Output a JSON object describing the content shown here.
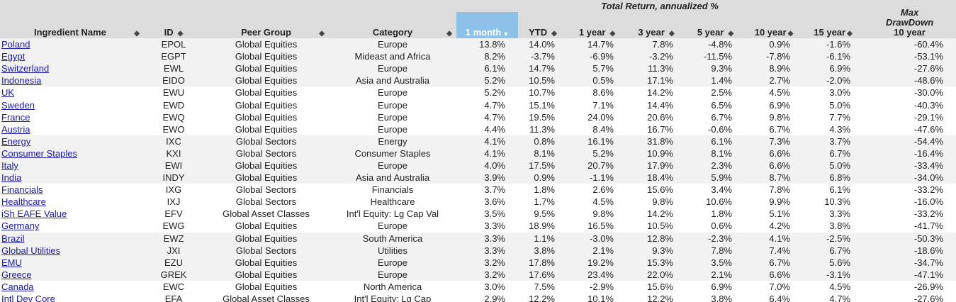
{
  "header": {
    "group_label": "Total Return, annualized %",
    "maxdd_line1": "Max",
    "maxdd_line2": "DrawDown",
    "maxdd_line3": "10 year",
    "columns": [
      {
        "label": "Ingredient Name",
        "sort": "both"
      },
      {
        "label": "ID",
        "sort": "both"
      },
      {
        "label": "Peer Group",
        "sort": "both"
      },
      {
        "label": "Category",
        "sort": "both"
      },
      {
        "label": "1 month",
        "sort": "desc",
        "active": true
      },
      {
        "label": "YTD",
        "sort": "both"
      },
      {
        "label": "1 year",
        "sort": "both"
      },
      {
        "label": "3 year",
        "sort": "both"
      },
      {
        "label": "5 year",
        "sort": "both"
      },
      {
        "label": "10 year",
        "sort": "both"
      },
      {
        "label": "15 year",
        "sort": "both"
      }
    ]
  },
  "rows": [
    {
      "name": "Poland",
      "id": "EPOL",
      "peer": "Global Equities",
      "category": "Europe",
      "m1": "13.8%",
      "ytd": "14.0%",
      "y1": "14.7%",
      "y3": "7.8%",
      "y5": "-4.8%",
      "y10": "0.9%",
      "y15": "-1.6%",
      "mdd": "-60.4%"
    },
    {
      "name": "Egypt",
      "id": "EGPT",
      "peer": "Global Equities",
      "category": "Mideast and Africa",
      "m1": "8.2%",
      "ytd": "-3.7%",
      "y1": "-6.9%",
      "y3": "-3.2%",
      "y5": "-11.5%",
      "y10": "-7.8%",
      "y15": "-6.1%",
      "mdd": "-53.1%"
    },
    {
      "name": "Switzerland",
      "id": "EWL",
      "peer": "Global Equities",
      "category": "Europe",
      "m1": "6.1%",
      "ytd": "14.7%",
      "y1": "5.7%",
      "y3": "11.3%",
      "y5": "9.3%",
      "y10": "8.9%",
      "y15": "6.9%",
      "mdd": "-27.6%"
    },
    {
      "name": "Indonesia",
      "id": "EIDO",
      "peer": "Global Equities",
      "category": "Asia and Australia",
      "m1": "5.2%",
      "ytd": "10.5%",
      "y1": "0.5%",
      "y3": "17.1%",
      "y5": "1.4%",
      "y10": "2.7%",
      "y15": "-2.0%",
      "mdd": "-48.6%"
    },
    {
      "name": "UK",
      "id": "EWU",
      "peer": "Global Equities",
      "category": "Europe",
      "m1": "5.2%",
      "ytd": "10.7%",
      "y1": "8.6%",
      "y3": "14.2%",
      "y5": "2.5%",
      "y10": "4.5%",
      "y15": "3.0%",
      "mdd": "-30.0%"
    },
    {
      "name": "Sweden",
      "id": "EWD",
      "peer": "Global Equities",
      "category": "Europe",
      "m1": "4.7%",
      "ytd": "15.1%",
      "y1": "7.1%",
      "y3": "14.4%",
      "y5": "6.5%",
      "y10": "6.9%",
      "y15": "5.0%",
      "mdd": "-40.3%"
    },
    {
      "name": "France",
      "id": "EWQ",
      "peer": "Global Equities",
      "category": "Europe",
      "m1": "4.7%",
      "ytd": "19.5%",
      "y1": "24.0%",
      "y3": "20.6%",
      "y5": "6.7%",
      "y10": "9.8%",
      "y15": "7.7%",
      "mdd": "-29.1%"
    },
    {
      "name": "Austria",
      "id": "EWO",
      "peer": "Global Equities",
      "category": "Europe",
      "m1": "4.4%",
      "ytd": "11.3%",
      "y1": "8.4%",
      "y3": "16.7%",
      "y5": "-0.6%",
      "y10": "6.7%",
      "y15": "4.3%",
      "mdd": "-47.6%"
    },
    {
      "name": "Energy",
      "id": "IXC",
      "peer": "Global Sectors",
      "category": "Energy",
      "m1": "4.1%",
      "ytd": "0.8%",
      "y1": "16.1%",
      "y3": "31.8%",
      "y5": "6.1%",
      "y10": "7.3%",
      "y15": "3.7%",
      "mdd": "-54.4%"
    },
    {
      "name": "Consumer Staples",
      "id": "KXI",
      "peer": "Global Sectors",
      "category": "Consumer Staples",
      "m1": "4.1%",
      "ytd": "8.1%",
      "y1": "5.2%",
      "y3": "10.9%",
      "y5": "8.1%",
      "y10": "6.6%",
      "y15": "6.7%",
      "mdd": "-16.4%"
    },
    {
      "name": "Italy",
      "id": "EWI",
      "peer": "Global Equities",
      "category": "Europe",
      "m1": "4.0%",
      "ytd": "17.5%",
      "y1": "20.7%",
      "y3": "17.9%",
      "y5": "2.3%",
      "y10": "6.6%",
      "y15": "5.0%",
      "mdd": "-33.4%"
    },
    {
      "name": "India",
      "id": "INDY",
      "peer": "Global Equities",
      "category": "Asia and Australia",
      "m1": "3.9%",
      "ytd": "0.9%",
      "y1": "-1.1%",
      "y3": "18.4%",
      "y5": "5.9%",
      "y10": "8.7%",
      "y15": "6.8%",
      "mdd": "-34.0%"
    },
    {
      "name": "Financials",
      "id": "IXG",
      "peer": "Global Sectors",
      "category": "Financials",
      "m1": "3.7%",
      "ytd": "1.8%",
      "y1": "2.6%",
      "y3": "15.6%",
      "y5": "3.4%",
      "y10": "7.8%",
      "y15": "6.1%",
      "mdd": "-33.2%"
    },
    {
      "name": "Healthcare",
      "id": "IXJ",
      "peer": "Global Sectors",
      "category": "Healthcare",
      "m1": "3.6%",
      "ytd": "1.7%",
      "y1": "4.5%",
      "y3": "9.8%",
      "y5": "10.6%",
      "y10": "9.9%",
      "y15": "10.3%",
      "mdd": "-16.0%"
    },
    {
      "name": "iSh EAFE Value",
      "id": "EFV",
      "peer": "Global Asset Classes",
      "category": "Int'l Equity: Lg Cap Val",
      "m1": "3.5%",
      "ytd": "9.5%",
      "y1": "9.8%",
      "y3": "14.2%",
      "y5": "1.8%",
      "y10": "5.1%",
      "y15": "3.3%",
      "mdd": "-33.2%"
    },
    {
      "name": "Germany",
      "id": "EWG",
      "peer": "Global Equities",
      "category": "Europe",
      "m1": "3.3%",
      "ytd": "18.9%",
      "y1": "16.5%",
      "y3": "10.5%",
      "y5": "0.6%",
      "y10": "4.2%",
      "y15": "3.8%",
      "mdd": "-41.7%"
    },
    {
      "name": "Brazil",
      "id": "EWZ",
      "peer": "Global Equities",
      "category": "South America",
      "m1": "3.3%",
      "ytd": "1.1%",
      "y1": "-3.0%",
      "y3": "12.8%",
      "y5": "-2.3%",
      "y10": "4.1%",
      "y15": "-2.5%",
      "mdd": "-50.3%"
    },
    {
      "name": "Global Utilities",
      "id": "JXI",
      "peer": "Global Sectors",
      "category": "Utilities",
      "m1": "3.3%",
      "ytd": "3.8%",
      "y1": "2.1%",
      "y3": "9.3%",
      "y5": "7.8%",
      "y10": "7.4%",
      "y15": "6.7%",
      "mdd": "-18.6%"
    },
    {
      "name": "EMU",
      "id": "EZU",
      "peer": "Global Equities",
      "category": "Europe",
      "m1": "3.2%",
      "ytd": "17.8%",
      "y1": "19.2%",
      "y3": "15.3%",
      "y5": "3.5%",
      "y10": "6.7%",
      "y15": "5.6%",
      "mdd": "-34.7%"
    },
    {
      "name": "Greece",
      "id": "GREK",
      "peer": "Global Equities",
      "category": "Europe",
      "m1": "3.2%",
      "ytd": "17.6%",
      "y1": "23.4%",
      "y3": "22.0%",
      "y5": "2.1%",
      "y10": "6.6%",
      "y15": "-3.1%",
      "mdd": "-47.1%"
    },
    {
      "name": "Canada",
      "id": "EWC",
      "peer": "Global Equities",
      "category": "North America",
      "m1": "3.0%",
      "ytd": "7.5%",
      "y1": "-2.9%",
      "y3": "15.6%",
      "y5": "6.9%",
      "y10": "7.0%",
      "y15": "4.5%",
      "mdd": "-26.9%"
    },
    {
      "name": "Intl Dev Core",
      "id": "EFA",
      "peer": "Global Asset Classes",
      "category": "Int'l Equity: Lg Cap",
      "m1": "2.9%",
      "ytd": "12.2%",
      "y1": "10.1%",
      "y3": "12.2%",
      "y5": "3.8%",
      "y10": "6.4%",
      "y15": "4.7%",
      "mdd": "-27.6%"
    }
  ]
}
